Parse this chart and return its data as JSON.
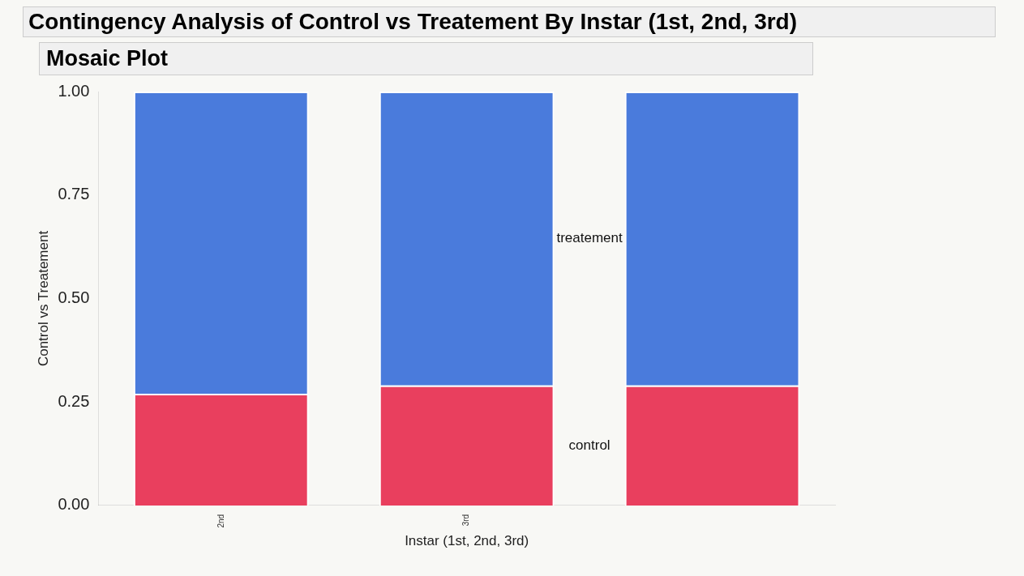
{
  "chart_data": {
    "type": "bar",
    "title": "Contingency Analysis of Control vs Treatement By Instar (1st, 2nd, 3rd)",
    "subtitle": "Mosaic Plot",
    "xlabel": "Instar (1st, 2nd, 3rd)",
    "ylabel": "Control vs Treatement",
    "stacked": true,
    "categories": [
      "2nd",
      "3rd",
      null
    ],
    "series": [
      {
        "name": "control",
        "color": "#e93f5e",
        "values": [
          0.27,
          0.29,
          0.29
        ]
      },
      {
        "name": "treatement",
        "color": "#4a7bdc",
        "values": [
          0.73,
          0.71,
          0.71
        ]
      }
    ],
    "ylim": [
      0,
      1
    ],
    "yticks": [
      {
        "value": 0,
        "label": "0.00"
      },
      {
        "value": 0.25,
        "label": "0.25"
      },
      {
        "value": 0.5,
        "label": "0.50"
      },
      {
        "value": 0.75,
        "label": "0.75"
      },
      {
        "value": 1,
        "label": "1.00"
      }
    ],
    "grid": false,
    "legend": false
  }
}
